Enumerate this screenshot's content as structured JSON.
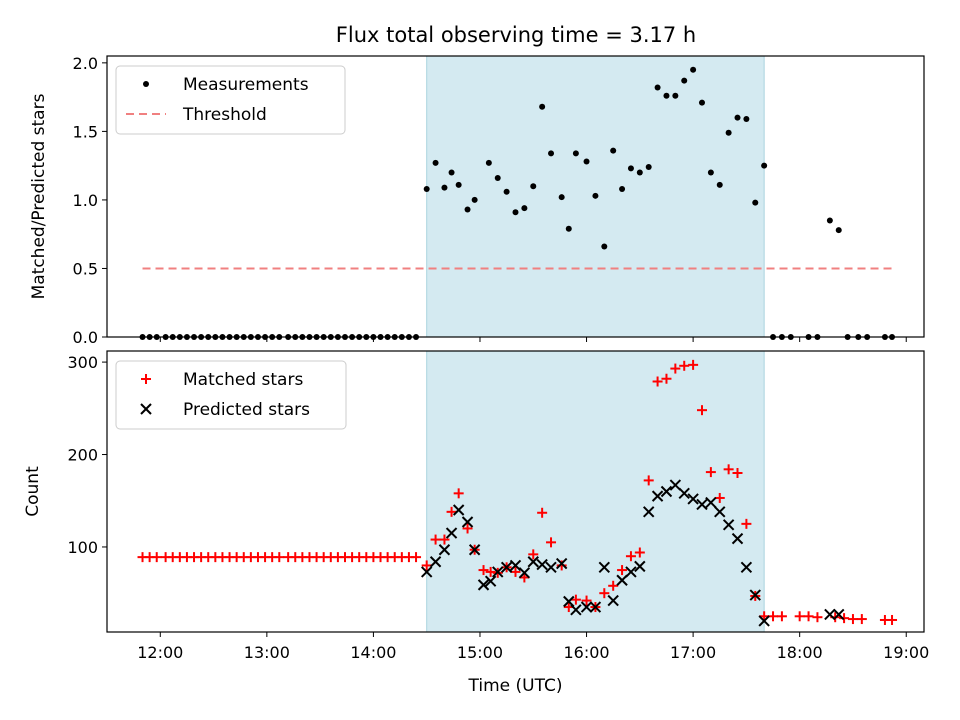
{
  "title": "Flux total observing time = 3.17 h",
  "chart_data": [
    {
      "type": "scatter",
      "panel": "top",
      "xlabel": "",
      "ylabel": "Matched/Predicted stars",
      "xlim": [
        "11:30",
        "19:10"
      ],
      "ylim": [
        0,
        2.05
      ],
      "yticks": [
        "0.0",
        "0.5",
        "1.0",
        "1.5",
        "2.0"
      ],
      "highlight_span": {
        "x0": "14:30",
        "x1": "17:40",
        "color": "#d4eaf1"
      },
      "legend": {
        "position": "top-left",
        "entries": [
          "Measurements",
          "Threshold"
        ]
      },
      "series": [
        {
          "name": "Measurements",
          "marker": "dot",
          "color": "#000000",
          "points": [
            [
              "11:50",
              0
            ],
            [
              "11:54",
              0
            ],
            [
              "11:58",
              0
            ],
            [
              "12:03",
              0
            ],
            [
              "12:07",
              0
            ],
            [
              "12:11",
              0
            ],
            [
              "12:15",
              0
            ],
            [
              "12:19",
              0
            ],
            [
              "12:23",
              0
            ],
            [
              "12:27",
              0
            ],
            [
              "12:31",
              0
            ],
            [
              "12:35",
              0
            ],
            [
              "12:39",
              0
            ],
            [
              "12:43",
              0
            ],
            [
              "12:47",
              0
            ],
            [
              "12:51",
              0
            ],
            [
              "12:55",
              0
            ],
            [
              "12:59",
              0
            ],
            [
              "13:03",
              0
            ],
            [
              "13:07",
              0
            ],
            [
              "13:12",
              0
            ],
            [
              "13:16",
              0
            ],
            [
              "13:20",
              0
            ],
            [
              "13:24",
              0
            ],
            [
              "13:28",
              0
            ],
            [
              "13:32",
              0
            ],
            [
              "13:36",
              0
            ],
            [
              "13:40",
              0
            ],
            [
              "13:44",
              0
            ],
            [
              "13:48",
              0
            ],
            [
              "13:52",
              0
            ],
            [
              "13:56",
              0
            ],
            [
              "14:00",
              0
            ],
            [
              "14:04",
              0
            ],
            [
              "14:08",
              0
            ],
            [
              "14:12",
              0
            ],
            [
              "14:16",
              0
            ],
            [
              "14:20",
              0
            ],
            [
              "14:24",
              0
            ],
            [
              "14:30",
              1.08
            ],
            [
              "14:35",
              1.27
            ],
            [
              "14:40",
              1.09
            ],
            [
              "14:44",
              1.2
            ],
            [
              "14:48",
              1.11
            ],
            [
              "14:53",
              0.93
            ],
            [
              "14:57",
              1.0
            ],
            [
              "15:05",
              1.27
            ],
            [
              "15:10",
              1.16
            ],
            [
              "15:15",
              1.06
            ],
            [
              "15:20",
              0.91
            ],
            [
              "15:25",
              0.94
            ],
            [
              "15:30",
              1.1
            ],
            [
              "15:35",
              1.68
            ],
            [
              "15:40",
              1.34
            ],
            [
              "15:46",
              1.02
            ],
            [
              "15:50",
              0.79
            ],
            [
              "15:54",
              1.34
            ],
            [
              "16:00",
              1.28
            ],
            [
              "16:05",
              1.03
            ],
            [
              "16:10",
              0.66
            ],
            [
              "16:15",
              1.36
            ],
            [
              "16:20",
              1.08
            ],
            [
              "16:25",
              1.23
            ],
            [
              "16:30",
              1.2
            ],
            [
              "16:35",
              1.24
            ],
            [
              "16:40",
              1.82
            ],
            [
              "16:45",
              1.76
            ],
            [
              "16:50",
              1.76
            ],
            [
              "16:55",
              1.87
            ],
            [
              "17:00",
              1.95
            ],
            [
              "17:05",
              1.71
            ],
            [
              "17:10",
              1.2
            ],
            [
              "17:15",
              1.11
            ],
            [
              "17:20",
              1.49
            ],
            [
              "17:25",
              1.6
            ],
            [
              "17:30",
              1.59
            ],
            [
              "17:35",
              0.98
            ],
            [
              "17:40",
              1.25
            ],
            [
              "17:45",
              0
            ],
            [
              "17:50",
              0
            ],
            [
              "17:55",
              0
            ],
            [
              "18:05",
              0
            ],
            [
              "18:10",
              0
            ],
            [
              "18:17",
              0.85
            ],
            [
              "18:22",
              0.78
            ],
            [
              "18:27",
              0
            ],
            [
              "18:33",
              0
            ],
            [
              "18:38",
              0
            ],
            [
              "18:48",
              0
            ],
            [
              "18:52",
              0
            ]
          ]
        },
        {
          "name": "Threshold",
          "style": "dashed",
          "color": "#f08080",
          "points": [
            [
              "11:50",
              0.5
            ],
            [
              "18:52",
              0.5
            ]
          ]
        }
      ]
    },
    {
      "type": "scatter",
      "panel": "bottom",
      "xlabel": "Time (UTC)",
      "ylabel": "Count",
      "xlim": [
        "11:30",
        "19:10"
      ],
      "ylim": [
        8,
        312
      ],
      "yticks": [
        "100",
        "200",
        "300"
      ],
      "xticks": [
        "12:00",
        "13:00",
        "14:00",
        "15:00",
        "16:00",
        "17:00",
        "18:00",
        "19:00"
      ],
      "highlight_span": {
        "x0": "14:30",
        "x1": "17:40",
        "color": "#d4eaf1"
      },
      "legend": {
        "position": "top-left",
        "entries": [
          "Matched stars",
          "Predicted stars"
        ]
      },
      "series": [
        {
          "name": "Matched stars",
          "marker": "plus",
          "color": "#ff0000",
          "points": [
            [
              "11:50",
              89
            ],
            [
              "11:54",
              89
            ],
            [
              "11:58",
              89
            ],
            [
              "12:03",
              89
            ],
            [
              "12:07",
              89
            ],
            [
              "12:11",
              89
            ],
            [
              "12:15",
              89
            ],
            [
              "12:19",
              89
            ],
            [
              "12:23",
              89
            ],
            [
              "12:27",
              89
            ],
            [
              "12:31",
              89
            ],
            [
              "12:35",
              89
            ],
            [
              "12:39",
              89
            ],
            [
              "12:43",
              89
            ],
            [
              "12:47",
              89
            ],
            [
              "12:51",
              89
            ],
            [
              "12:55",
              89
            ],
            [
              "12:59",
              89
            ],
            [
              "13:03",
              89
            ],
            [
              "13:07",
              89
            ],
            [
              "13:12",
              89
            ],
            [
              "13:16",
              89
            ],
            [
              "13:20",
              89
            ],
            [
              "13:24",
              89
            ],
            [
              "13:28",
              89
            ],
            [
              "13:32",
              89
            ],
            [
              "13:36",
              89
            ],
            [
              "13:40",
              89
            ],
            [
              "13:44",
              89
            ],
            [
              "13:48",
              89
            ],
            [
              "13:52",
              89
            ],
            [
              "13:56",
              89
            ],
            [
              "14:00",
              89
            ],
            [
              "14:04",
              89
            ],
            [
              "14:08",
              89
            ],
            [
              "14:12",
              89
            ],
            [
              "14:16",
              89
            ],
            [
              "14:20",
              89
            ],
            [
              "14:24",
              89
            ],
            [
              "14:30",
              80
            ],
            [
              "14:35",
              108
            ],
            [
              "14:40",
              108
            ],
            [
              "14:44",
              138
            ],
            [
              "14:48",
              158
            ],
            [
              "14:53",
              120
            ],
            [
              "14:57",
              97
            ],
            [
              "15:02",
              75
            ],
            [
              "15:06",
              73
            ],
            [
              "15:10",
              72
            ],
            [
              "15:15",
              78
            ],
            [
              "15:20",
              73
            ],
            [
              "15:25",
              67
            ],
            [
              "15:30",
              92
            ],
            [
              "15:35",
              137
            ],
            [
              "15:40",
              105
            ],
            [
              "15:46",
              80
            ],
            [
              "15:50",
              35
            ],
            [
              "15:54",
              43
            ],
            [
              "16:00",
              42
            ],
            [
              "16:05",
              35
            ],
            [
              "16:10",
              50
            ],
            [
              "16:15",
              58
            ],
            [
              "16:20",
              75
            ],
            [
              "16:25",
              90
            ],
            [
              "16:30",
              94
            ],
            [
              "16:35",
              172
            ],
            [
              "16:40",
              279
            ],
            [
              "16:45",
              282
            ],
            [
              "16:50",
              293
            ],
            [
              "16:55",
              296
            ],
            [
              "17:00",
              297
            ],
            [
              "17:05",
              248
            ],
            [
              "17:10",
              181
            ],
            [
              "17:15",
              153
            ],
            [
              "17:20",
              184
            ],
            [
              "17:25",
              180
            ],
            [
              "17:30",
              125
            ],
            [
              "17:35",
              47
            ],
            [
              "17:40",
              25
            ],
            [
              "17:45",
              25
            ],
            [
              "17:50",
              25
            ],
            [
              "18:00",
              25
            ],
            [
              "18:05",
              25
            ],
            [
              "18:10",
              24
            ],
            [
              "18:20",
              24
            ],
            [
              "18:25",
              23
            ],
            [
              "18:30",
              22
            ],
            [
              "18:35",
              22
            ],
            [
              "18:48",
              21
            ],
            [
              "18:52",
              21
            ]
          ]
        },
        {
          "name": "Predicted stars",
          "marker": "x",
          "color": "#000000",
          "points": [
            [
              "14:30",
              73
            ],
            [
              "14:35",
              84
            ],
            [
              "14:40",
              97
            ],
            [
              "14:44",
              115
            ],
            [
              "14:48",
              140
            ],
            [
              "14:53",
              127
            ],
            [
              "14:57",
              97
            ],
            [
              "15:02",
              59
            ],
            [
              "15:06",
              63
            ],
            [
              "15:10",
              73
            ],
            [
              "15:15",
              78
            ],
            [
              "15:20",
              80
            ],
            [
              "15:25",
              72
            ],
            [
              "15:30",
              84
            ],
            [
              "15:35",
              81
            ],
            [
              "15:40",
              78
            ],
            [
              "15:46",
              82
            ],
            [
              "15:50",
              41
            ],
            [
              "15:54",
              32
            ],
            [
              "16:00",
              35
            ],
            [
              "16:05",
              35
            ],
            [
              "16:10",
              78
            ],
            [
              "16:15",
              42
            ],
            [
              "16:20",
              64
            ],
            [
              "16:25",
              73
            ],
            [
              "16:30",
              79
            ],
            [
              "16:35",
              138
            ],
            [
              "16:40",
              155
            ],
            [
              "16:45",
              160
            ],
            [
              "16:50",
              167
            ],
            [
              "16:55",
              158
            ],
            [
              "17:00",
              152
            ],
            [
              "17:05",
              146
            ],
            [
              "17:10",
              148
            ],
            [
              "17:15",
              138
            ],
            [
              "17:20",
              124
            ],
            [
              "17:25",
              109
            ],
            [
              "17:30",
              78
            ],
            [
              "17:35",
              48
            ],
            [
              "17:40",
              20
            ],
            [
              "18:17",
              27
            ],
            [
              "18:22",
              27
            ]
          ]
        }
      ]
    }
  ]
}
